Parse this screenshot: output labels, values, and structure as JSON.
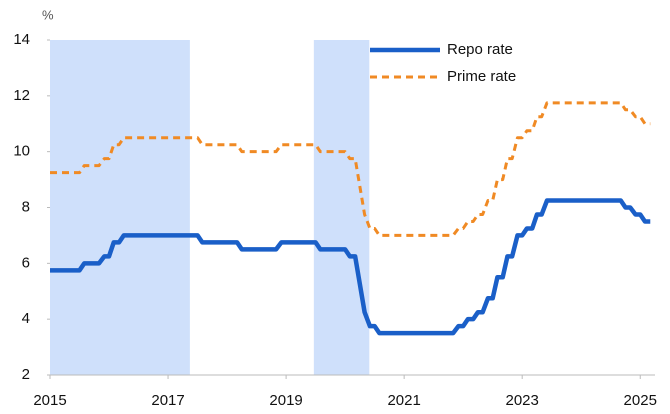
{
  "chart_data": {
    "type": "line",
    "y_unit_label": "%",
    "x": [
      2015.0,
      2015.5,
      2015.58,
      2015.83,
      2015.92,
      2016.0,
      2016.08,
      2016.17,
      2016.25,
      2017.5,
      2017.58,
      2018.17,
      2018.25,
      2018.83,
      2018.92,
      2019.5,
      2019.58,
      2020.0,
      2020.08,
      2020.17,
      2020.25,
      2020.33,
      2020.42,
      2020.5,
      2020.58,
      2021.83,
      2021.92,
      2022.0,
      2022.08,
      2022.17,
      2022.25,
      2022.33,
      2022.42,
      2022.5,
      2022.58,
      2022.67,
      2022.75,
      2022.83,
      2022.92,
      2023.0,
      2023.08,
      2023.17,
      2023.25,
      2023.33,
      2023.42,
      2024.67,
      2024.75,
      2024.83,
      2024.92,
      2025.0,
      2025.08,
      2025.17
    ],
    "series": [
      {
        "name": "Repo rate",
        "color": "#1a5fc8",
        "dash": false,
        "values": [
          5.75,
          5.75,
          6.0,
          6.0,
          6.25,
          6.25,
          6.75,
          6.75,
          7.0,
          7.0,
          6.75,
          6.75,
          6.5,
          6.5,
          6.75,
          6.75,
          6.5,
          6.5,
          6.25,
          6.25,
          5.25,
          4.25,
          3.75,
          3.75,
          3.5,
          3.5,
          3.75,
          3.75,
          4.0,
          4.0,
          4.25,
          4.25,
          4.75,
          4.75,
          5.5,
          5.5,
          6.25,
          6.25,
          7.0,
          7.0,
          7.25,
          7.25,
          7.75,
          7.75,
          8.25,
          8.25,
          8.0,
          8.0,
          7.75,
          7.75,
          7.5,
          7.5
        ]
      },
      {
        "name": "Prime rate",
        "color": "#f08a24",
        "dash": true,
        "values": [
          9.25,
          9.25,
          9.5,
          9.5,
          9.75,
          9.75,
          10.25,
          10.25,
          10.5,
          10.5,
          10.25,
          10.25,
          10.0,
          10.0,
          10.25,
          10.25,
          10.0,
          10.0,
          9.75,
          9.75,
          8.75,
          7.75,
          7.25,
          7.25,
          7.0,
          7.0,
          7.25,
          7.25,
          7.5,
          7.5,
          7.75,
          7.75,
          8.25,
          8.25,
          9.0,
          9.0,
          9.75,
          9.75,
          10.5,
          10.5,
          10.75,
          10.75,
          11.25,
          11.25,
          11.75,
          11.75,
          11.5,
          11.5,
          11.25,
          11.25,
          11.0,
          11.0
        ]
      }
    ],
    "shaded_ranges": [
      [
        2015.0,
        2017.37
      ],
      [
        2019.47,
        2020.41
      ]
    ],
    "shade_color": "#cfe0fb",
    "xlim": [
      2015,
      2025.25
    ],
    "xticks": [
      2015,
      2017,
      2019,
      2021,
      2023,
      2025
    ],
    "ylim": [
      2,
      14
    ],
    "yticks": [
      2,
      4,
      6,
      8,
      10,
      12,
      14
    ],
    "legend": "upper-right"
  }
}
